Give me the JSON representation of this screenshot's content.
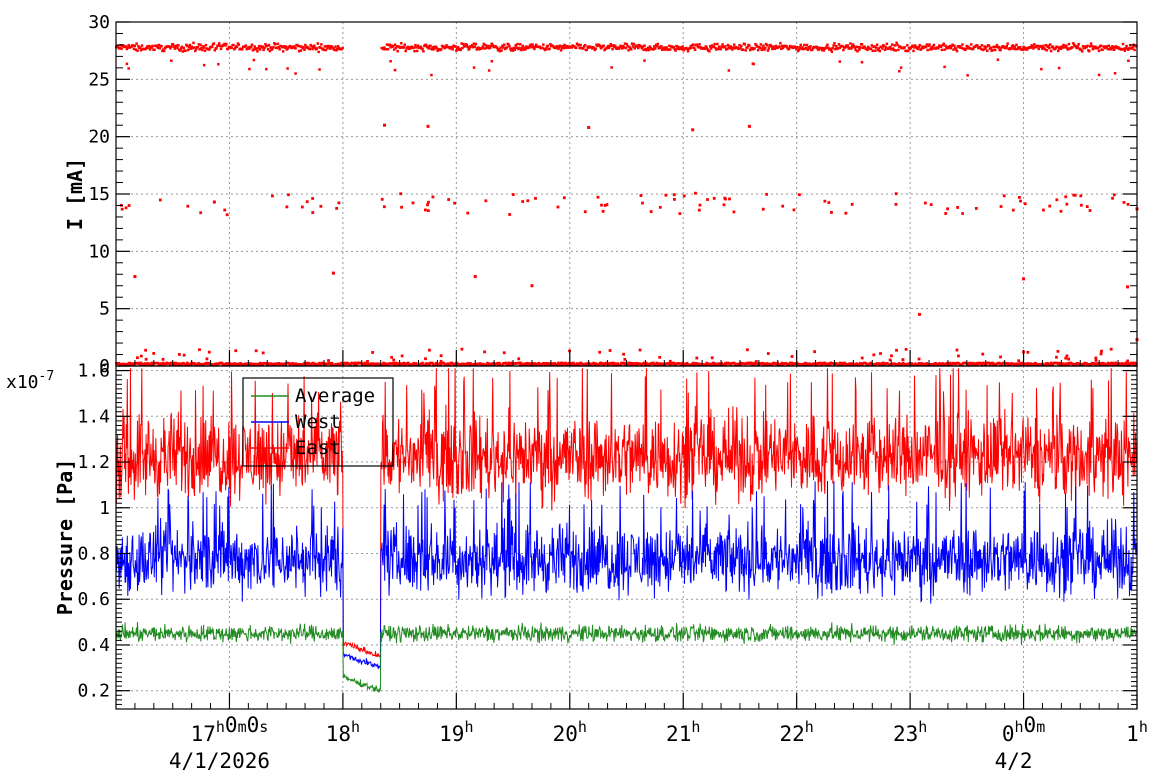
{
  "chart_data": [
    {
      "type": "scatter",
      "ylabel": "I [mA]",
      "ylim": [
        0,
        30
      ],
      "yticks": [
        0,
        5,
        10,
        15,
        20,
        25,
        30
      ],
      "xlim": [
        "2026-04-01T16:00",
        "2026-04-02T01:00"
      ],
      "grid": true,
      "series": [
        {
          "color": "#ff0000",
          "main_band_mA": 27.8,
          "gap": [
            "2026-04-01T18:00",
            "2026-04-01T18:20"
          ],
          "points": [
            [
              "2026-04-01T16:10",
              7.8
            ],
            [
              "2026-04-01T16:52",
              14.3
            ],
            [
              "2026-04-01T17:55",
              8.1
            ],
            [
              "2026-04-01T18:22",
              21.0
            ],
            [
              "2026-04-01T18:45",
              20.9
            ],
            [
              "2026-04-01T19:10",
              7.8
            ],
            [
              "2026-04-01T19:40",
              7.0
            ],
            [
              "2026-04-01T20:10",
              20.8
            ],
            [
              "2026-04-01T21:05",
              20.6
            ],
            [
              "2026-04-01T21:35",
              20.9
            ],
            [
              "2026-04-02T00:00",
              7.6
            ],
            [
              "2026-04-01T23:05",
              4.5
            ],
            [
              "2026-04-02T00:55",
              6.9
            ],
            [
              "2026-04-02T01:00",
              13.7
            ],
            [
              "2026-04-02T01:00",
              2.3
            ]
          ]
        }
      ]
    },
    {
      "type": "line",
      "ylabel": "Pressure [Pa]",
      "yexponent": "x10",
      "yexponent_power": "-7",
      "ylim": [
        0.12,
        1.62
      ],
      "yticks": [
        0.2,
        0.4,
        0.6,
        0.8,
        1.0,
        1.2,
        1.4,
        1.6
      ],
      "ytick_labels": [
        "0.2",
        "0.4",
        "0.6",
        "0.8",
        "1",
        "1.2",
        "1.4",
        "1.6"
      ],
      "xlim": [
        "2026-04-01T16:00",
        "2026-04-02T01:00"
      ],
      "grid": true,
      "legend": "top-left",
      "series": [
        {
          "name": "Average",
          "color": "#228b22",
          "typical_range": [
            0.35,
            0.55
          ],
          "dip": 0.2
        },
        {
          "name": "West",
          "color": "#0000ff",
          "typical_range": [
            0.55,
            1.0
          ],
          "dip": 0.3
        },
        {
          "name": "East",
          "color": "#ff0000",
          "typical_range": [
            0.95,
            1.5
          ],
          "dip": 0.35
        }
      ],
      "dip_window": [
        "2026-04-01T18:00",
        "2026-04-01T18:20"
      ]
    }
  ],
  "xaxis": {
    "ticks": [
      {
        "time": "2026-04-01T17:00",
        "base": "17",
        "sup": [
          "h",
          "0",
          "m",
          "0",
          "s"
        ]
      },
      {
        "time": "2026-04-01T18:00",
        "base": "18",
        "sup": [
          "h"
        ]
      },
      {
        "time": "2026-04-01T19:00",
        "base": "19",
        "sup": [
          "h"
        ]
      },
      {
        "time": "2026-04-01T20:00",
        "base": "20",
        "sup": [
          "h"
        ]
      },
      {
        "time": "2026-04-01T21:00",
        "base": "21",
        "sup": [
          "h"
        ]
      },
      {
        "time": "2026-04-01T22:00",
        "base": "22",
        "sup": [
          "h"
        ]
      },
      {
        "time": "2026-04-01T23:00",
        "base": "23",
        "sup": [
          "h"
        ]
      },
      {
        "time": "2026-04-02T00:00",
        "base": "0",
        "sup": [
          "h",
          "0",
          "m"
        ]
      },
      {
        "time": "2026-04-02T01:00",
        "base": "1",
        "sup": [
          "h"
        ]
      }
    ],
    "date_labels": [
      {
        "time": "2026-04-01T17:00",
        "text": "4/1/2026"
      },
      {
        "time": "2026-04-02T00:00",
        "text": "4/2"
      }
    ]
  }
}
